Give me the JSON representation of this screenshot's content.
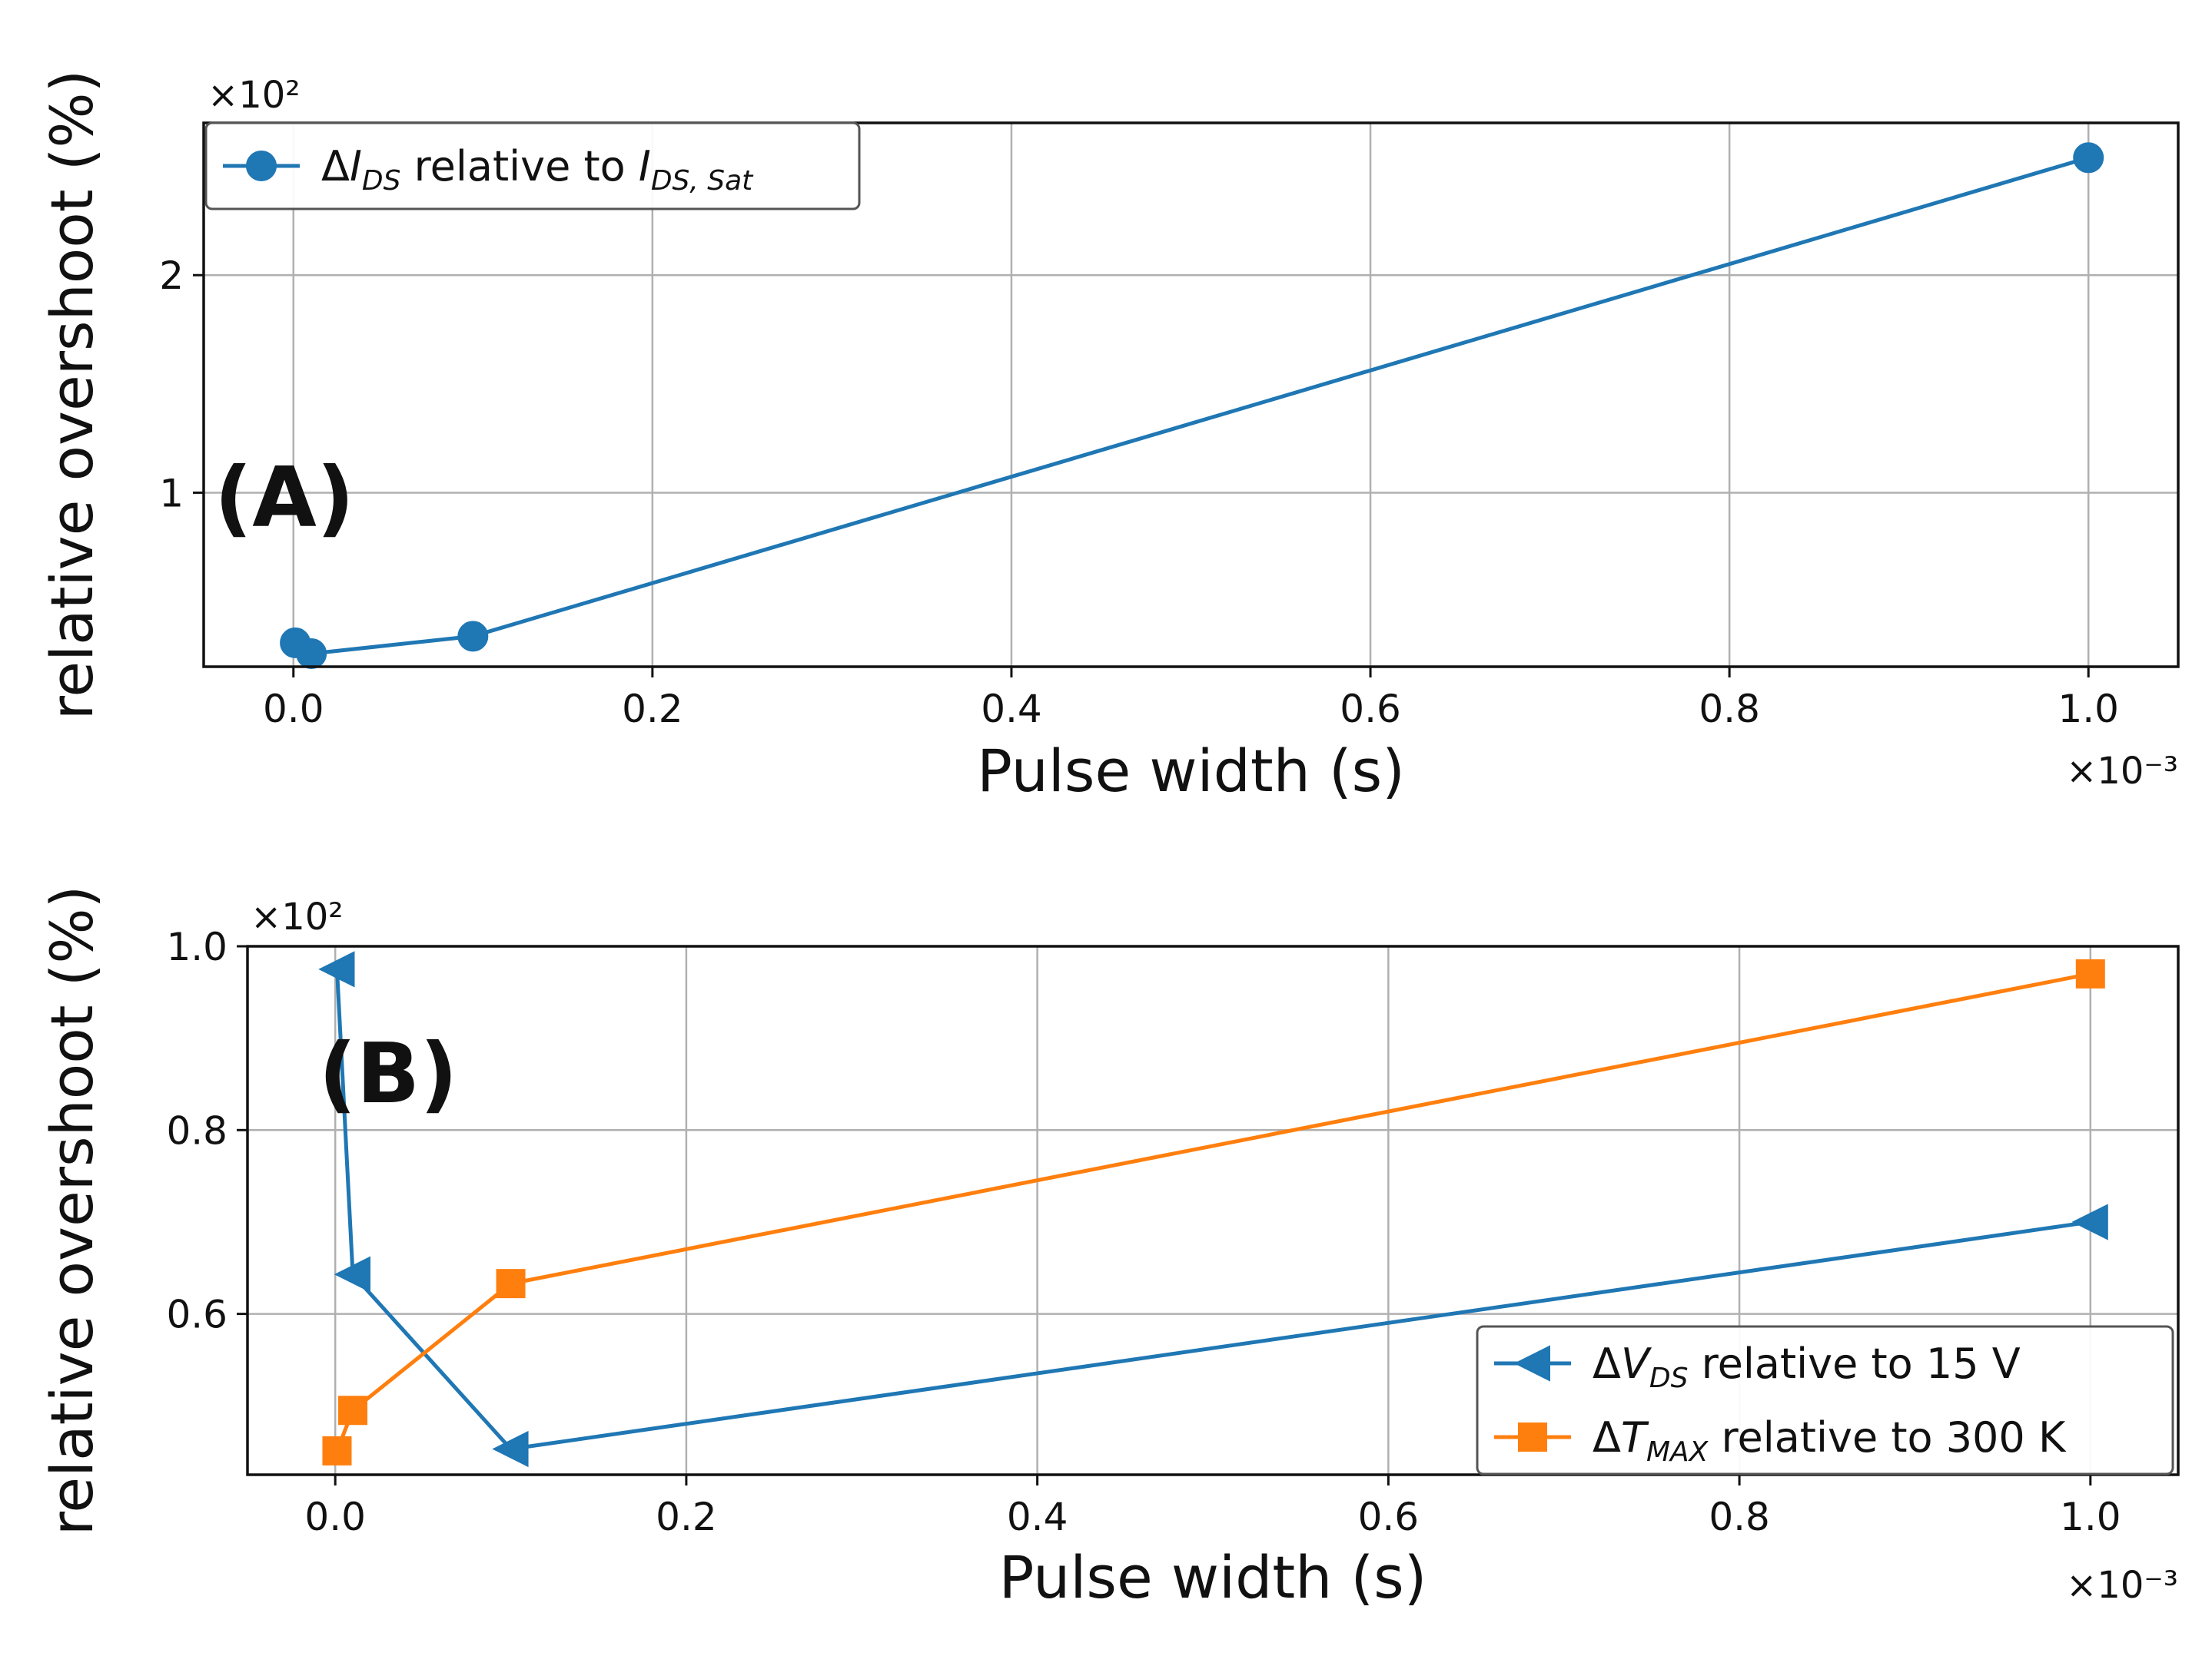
{
  "chart_data": [
    {
      "id": "A",
      "type": "line",
      "panel_label": "(A)",
      "title": "",
      "xlabel": "Pulse width (s)",
      "ylabel": "relative overshoot (%)",
      "x_offset_text": "×10⁻³",
      "y_offset_text": "×10²",
      "xlim": [
        -5e-05,
        0.00105
      ],
      "ylim": [
        0.2,
        2.7
      ],
      "xticks": [
        0.0,
        0.0002,
        0.0004,
        0.0006,
        0.0008,
        0.001
      ],
      "xtick_labels": [
        "0.0",
        "0.2",
        "0.4",
        "0.6",
        "0.8",
        "1.0"
      ],
      "yticks": [
        1,
        2
      ],
      "ytick_labels": [
        "1",
        "2"
      ],
      "grid": true,
      "legend_position": "top-left",
      "series": [
        {
          "name": "ΔI_DS relative to I_DS,Sat",
          "legend": {
            "prefix": "Δ",
            "var": "I",
            "sub": "DS",
            "mid": " relative to ",
            "var2": "I",
            "sub2": "DS, Sat"
          },
          "color": "#1f77b4",
          "marker": "circle",
          "x": [
            1e-06,
            1e-05,
            0.0001,
            0.001
          ],
          "y": [
            0.31,
            0.26,
            0.34,
            2.54
          ]
        }
      ]
    },
    {
      "id": "B",
      "type": "line",
      "panel_label": "(B)",
      "title": "",
      "xlabel": "Pulse width (s)",
      "ylabel": "relative overshoot (%)",
      "x_offset_text": "×10⁻³",
      "y_offset_text": "×10²",
      "xlim": [
        -5e-05,
        0.00105
      ],
      "ylim": [
        0.425,
        1.0
      ],
      "xticks": [
        0.0,
        0.0002,
        0.0004,
        0.0006,
        0.0008,
        0.001
      ],
      "xtick_labels": [
        "0.0",
        "0.2",
        "0.4",
        "0.6",
        "0.8",
        "1.0"
      ],
      "yticks": [
        0.6,
        0.8,
        1.0
      ],
      "ytick_labels": [
        "0.6",
        "0.8",
        "1.0"
      ],
      "grid": true,
      "legend_position": "bottom-right",
      "series": [
        {
          "name": "ΔV_DS relative to 15 V",
          "legend": {
            "prefix": "Δ",
            "var": "V",
            "sub": "DS",
            "mid": " relative to 15 V"
          },
          "color": "#1f77b4",
          "marker": "triangle-left",
          "x": [
            1e-06,
            1e-05,
            0.0001,
            0.001
          ],
          "y": [
            0.975,
            0.643,
            0.453,
            0.7
          ]
        },
        {
          "name": "ΔT_MAX relative to 300 K",
          "legend": {
            "prefix": "Δ",
            "var": "T",
            "sub": "MAX",
            "mid": " relative to 300 K"
          },
          "color": "#ff7f0e",
          "marker": "square",
          "x": [
            1e-06,
            1e-05,
            0.0001,
            0.001
          ],
          "y": [
            0.451,
            0.495,
            0.633,
            0.97
          ]
        }
      ]
    }
  ]
}
